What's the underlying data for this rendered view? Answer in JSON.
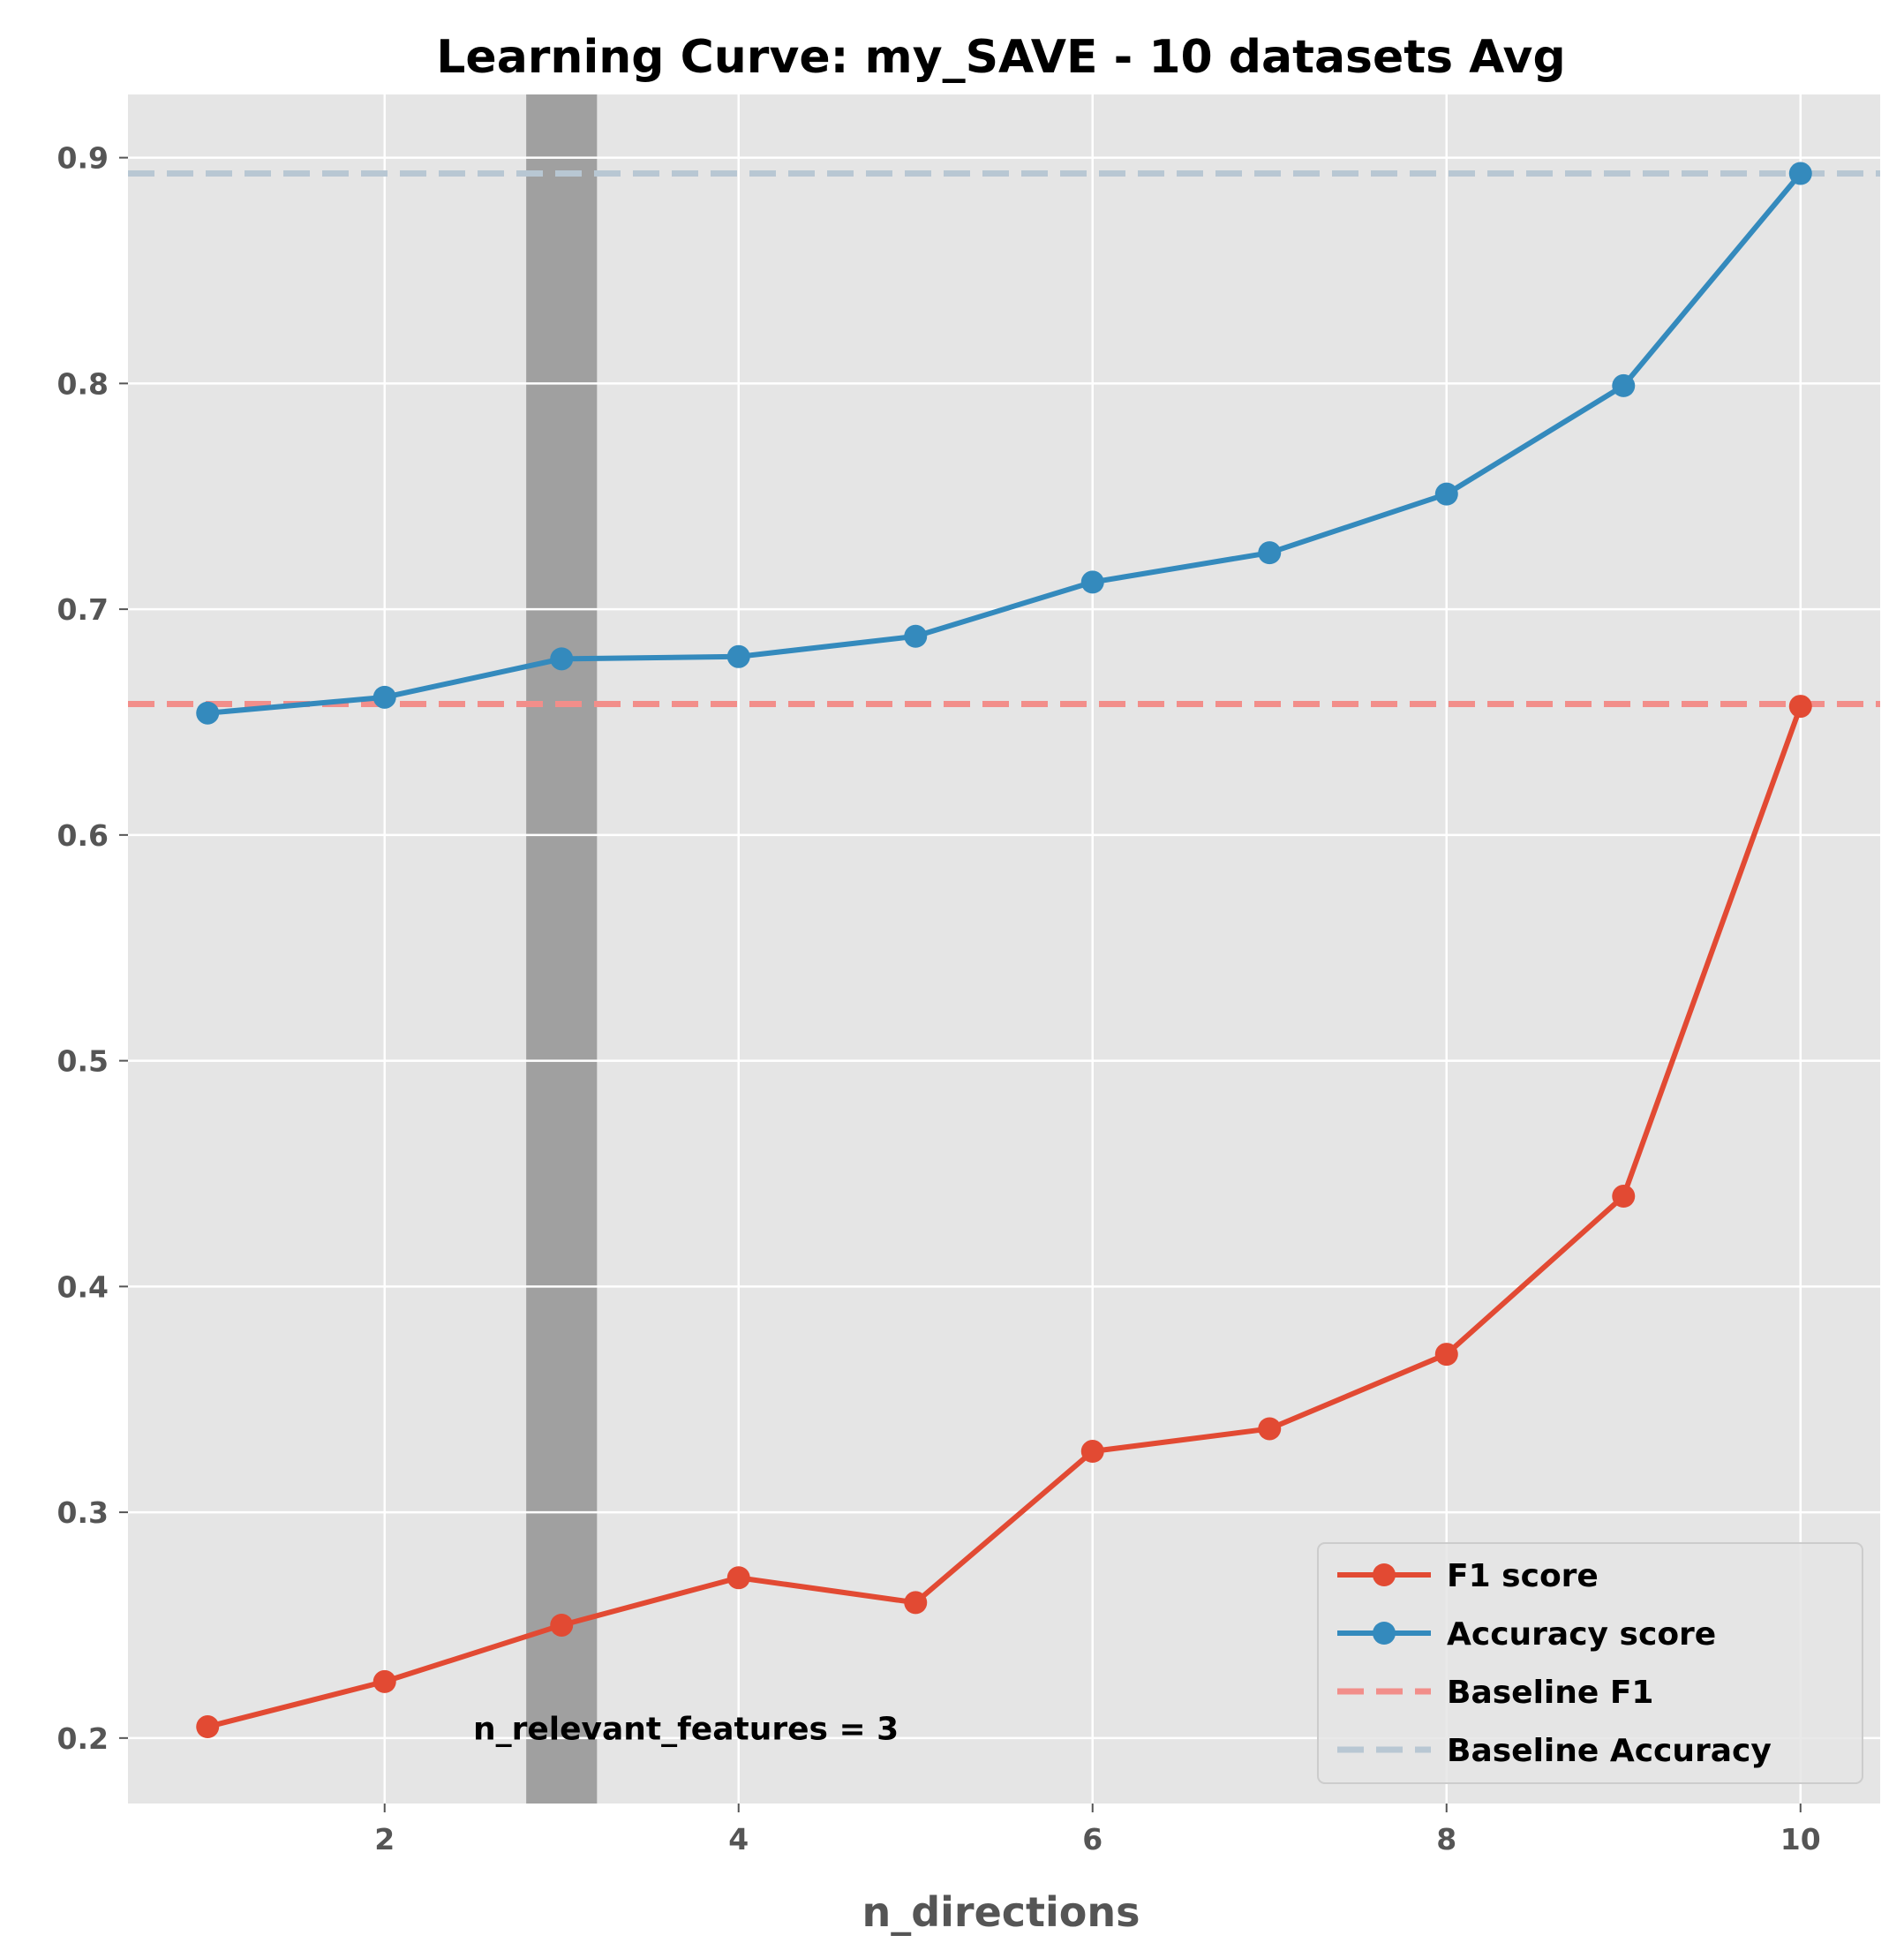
{
  "chart_data": {
    "type": "line",
    "title": "Learning Curve: my_SAVE - 10 datasets Avg",
    "xlabel": "n_directions",
    "ylabel": "",
    "xlim": [
      0.55,
      10.45
    ],
    "ylim": [
      0.171,
      0.928
    ],
    "xticks": [
      2,
      4,
      6,
      8,
      10
    ],
    "yticks": [
      0.2,
      0.3,
      0.4,
      0.5,
      0.6,
      0.7,
      0.8,
      0.9
    ],
    "grid": true,
    "legend_position": "lower-right",
    "x": [
      1,
      2,
      3,
      4,
      5,
      6,
      7,
      8,
      9,
      10
    ],
    "series": [
      {
        "name": "F1 score",
        "color": "#E24A33",
        "values": [
          0.205,
          0.225,
          0.25,
          0.271,
          0.26,
          0.327,
          0.337,
          0.37,
          0.44,
          0.657
        ]
      },
      {
        "name": "Accuracy score",
        "color": "#348ABD",
        "values": [
          0.654,
          0.661,
          0.678,
          0.679,
          0.688,
          0.712,
          0.725,
          0.751,
          0.799,
          0.893
        ]
      }
    ],
    "baselines": [
      {
        "name": "Baseline F1",
        "color": "#F28E8A",
        "value": 0.658
      },
      {
        "name": "Baseline Accuracy",
        "color": "#B8C7D3",
        "value": 0.893
      }
    ],
    "highlight_band": {
      "x_from": 2.8,
      "x_to": 3.2,
      "color": "#A0A0A0"
    },
    "annotation": {
      "text": "n_relevant_features = 3",
      "x": 2.5,
      "y": 0.204
    }
  }
}
